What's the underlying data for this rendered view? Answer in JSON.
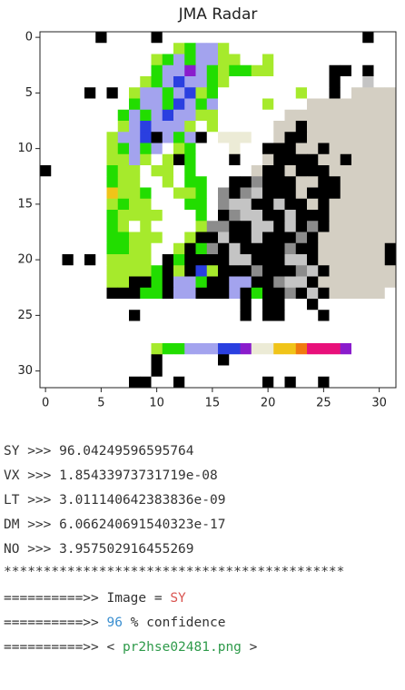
{
  "chart_data": {
    "type": "image",
    "title": "JMA Radar",
    "xlim": [
      -0.5,
      31.5
    ],
    "ylim": [
      -0.5,
      31.5
    ],
    "xticks": [
      0,
      5,
      10,
      15,
      20,
      25,
      30
    ],
    "yticks": [
      0,
      5,
      10,
      15,
      20,
      25,
      30
    ],
    "palette": {
      ".": "#ffffff",
      "k": "#000000",
      "g": "#22dd00",
      "l": "#a6ea2c",
      "b": "#a3a3ee",
      "B": "#2a3fe0",
      "p": "#8a1ccc",
      "e": "#ecebd6",
      "w": "#d4cfc3",
      "G": "#c4c4c4",
      "D": "#8c8c8c",
      "y": "#f0c419",
      "o": "#f07a10",
      "m": "#e8107a"
    },
    "grid": [
      ".....k....k..................k..",
      "............lgbbl...............",
      "..........lgbgbbll..l...........",
      "..........gbbpbglggll.....kk.k..",
      ".........lgbBbbgl.........k..G..",
      "....k.k.lbbgbBlg.......l..k.wwww",
      "........gbbgBbgb....l...wwwwwwww",
      ".......gbgbBbbll......wwwwwwwwww",
      ".......lbBbbbl.l.....wwkwwwwwwww",
      "......lbbBkbgbk.eee..wkkwwwwwwww",
      "......lgbgb.lg...e..kkkwwkwwwwww",
      "......llbl.lkg...k..wkkkkwwkwwww",
      "k.....gll.ll.g.....wkkwkkkwwwwww",
      "......gll..l.gg..kkDkkkwwkkwwwww",
      "......yllg..llg.DkDGkkkwkkkwwwww",
      "......lgll...gg.DGGkkGkkwkwwwwww",
      "......gllll...g.kDGGkkGkkkwwwwww",
      "......gl.l....lDDkkGGkGkDkwwwwww",
      "......gglll..lkkGkkGkkkDkwwwwwww",
      "......ggll..lkgDkGkkkkDkkwwwwwwk",
      "..k.k.llll.kgkkkkGGkkkGGkwwwwwwk",
      "......llllgklkBlkkkDkkkDGkwwwwww",
      "......llkkgkbbgkkbbkkDGGkwwwwwww",
      "......kkkggkbbkkkbkgkkDkGkwwwww.",
      "..................k.kk..k.......",
      "........k.........k.kk...k......",
      "................................",
      "................................",
      "..........lggbbbBBpeeyyommmp....",
      "..........k.....k...............",
      "..........k.....................",
      "........kk..k.......k.k..k......"
    ]
  },
  "output": {
    "scores": [
      "SY >>> 96.04249596595764",
      "VX >>> 1.85433973731719e-08",
      "LT >>> 3.011140642383836e-09",
      "DM >>> 6.066240691540323e-17",
      "NO >>> 3.957502916455269"
    ],
    "separator": "*******************************************",
    "image_prefix": "==========>> Image = ",
    "image_label": "SY",
    "confidence_prefix": "==========>> ",
    "confidence": "96",
    "confidence_suffix": " % confidence",
    "file_prefix": "==========>> < ",
    "file": "pr2hse02481.png",
    "file_suffix": " >"
  }
}
